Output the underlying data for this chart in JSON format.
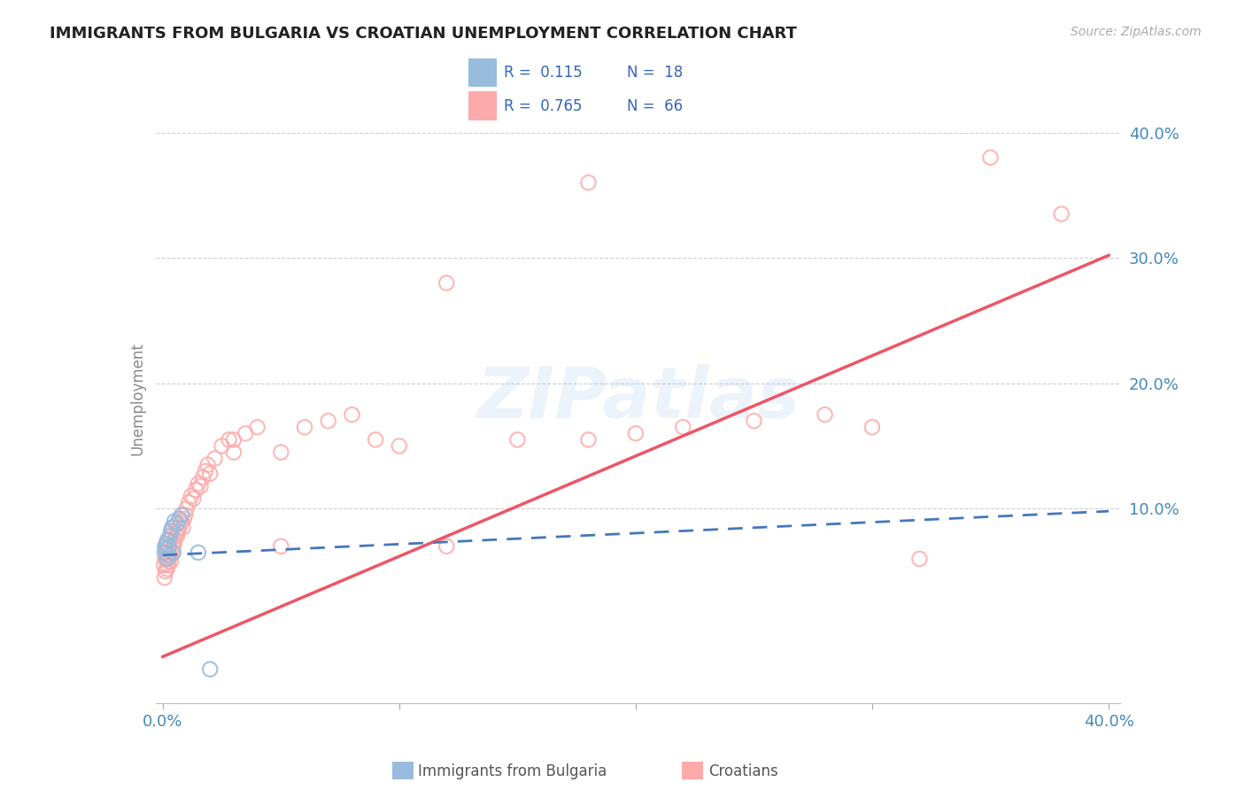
{
  "title": "IMMIGRANTS FROM BULGARIA VS CROATIAN UNEMPLOYMENT CORRELATION CHART",
  "source": "Source: ZipAtlas.com",
  "ylabel": "Unemployment",
  "xlim": [
    -0.003,
    0.405
  ],
  "ylim": [
    -0.055,
    0.43
  ],
  "color_blue": "#99BBDD",
  "color_pink": "#FFAAAA",
  "color_blue_line": "#4477BB",
  "color_pink_line": "#EE5566",
  "color_text_blue": "#3366BB",
  "color_axis": "#4488BB",
  "grid_color": "#BBBBBB",
  "bg_color": "#FFFFFF",
  "watermark": "ZIPatlas",
  "legend_r_blue": "R =  0.115",
  "legend_n_blue": "N =  18",
  "legend_r_pink": "R =  0.765",
  "legend_n_pink": "N =  66",
  "blue_x": [
    0.0008,
    0.001,
    0.0012,
    0.0015,
    0.0018,
    0.002,
    0.0022,
    0.0025,
    0.003,
    0.0035,
    0.004,
    0.0045,
    0.005,
    0.006,
    0.007,
    0.008,
    0.015,
    0.02
  ],
  "blue_y": [
    0.065,
    0.07,
    0.068,
    0.072,
    0.06,
    0.075,
    0.063,
    0.069,
    0.078,
    0.082,
    0.085,
    0.065,
    0.09,
    0.088,
    0.092,
    0.095,
    0.065,
    -0.028
  ],
  "pink_x": [
    0.0005,
    0.0008,
    0.001,
    0.0012,
    0.0015,
    0.0018,
    0.002,
    0.0022,
    0.0025,
    0.0028,
    0.003,
    0.0032,
    0.0035,
    0.0038,
    0.004,
    0.0042,
    0.0045,
    0.0048,
    0.005,
    0.0055,
    0.006,
    0.0065,
    0.007,
    0.0075,
    0.008,
    0.0085,
    0.009,
    0.0095,
    0.01,
    0.011,
    0.012,
    0.013,
    0.014,
    0.015,
    0.016,
    0.017,
    0.018,
    0.019,
    0.02,
    0.022,
    0.025,
    0.028,
    0.03,
    0.035,
    0.04,
    0.05,
    0.06,
    0.07,
    0.08,
    0.09,
    0.1,
    0.12,
    0.15,
    0.18,
    0.2,
    0.22,
    0.25,
    0.28,
    0.3,
    0.32,
    0.03,
    0.05,
    0.12,
    0.18,
    0.35,
    0.38
  ],
  "pink_y": [
    0.055,
    0.045,
    0.06,
    0.05,
    0.065,
    0.052,
    0.068,
    0.055,
    0.058,
    0.07,
    0.062,
    0.075,
    0.058,
    0.08,
    0.065,
    0.085,
    0.07,
    0.072,
    0.075,
    0.08,
    0.078,
    0.082,
    0.085,
    0.088,
    0.09,
    0.085,
    0.092,
    0.095,
    0.1,
    0.105,
    0.11,
    0.108,
    0.115,
    0.12,
    0.118,
    0.125,
    0.13,
    0.135,
    0.128,
    0.14,
    0.15,
    0.155,
    0.145,
    0.16,
    0.165,
    0.07,
    0.165,
    0.17,
    0.175,
    0.155,
    0.15,
    0.07,
    0.155,
    0.155,
    0.16,
    0.165,
    0.17,
    0.175,
    0.165,
    0.06,
    0.155,
    0.145,
    0.28,
    0.36,
    0.38,
    0.335
  ],
  "pink_line_x": [
    0.0,
    0.4
  ],
  "pink_line_y": [
    -0.018,
    0.302
  ],
  "blue_line_x": [
    0.0,
    0.4
  ],
  "blue_line_y": [
    0.063,
    0.098
  ]
}
